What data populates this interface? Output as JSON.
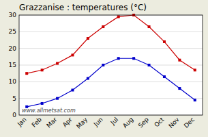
{
  "chart_data": {
    "type": "line",
    "title": "Grazzanise : temperatures (°C)",
    "categories": [
      "Jan",
      "Feb",
      "Mar",
      "Apr",
      "May",
      "Jun",
      "Jul",
      "Aug",
      "Sep",
      "Oct",
      "Nov",
      "Dec"
    ],
    "series": [
      {
        "color": "#cc0000",
        "values": [
          12.5,
          13.5,
          15.5,
          18.0,
          23.0,
          26.5,
          29.5,
          30.0,
          26.5,
          22.0,
          16.5,
          13.5
        ]
      },
      {
        "color": "#0000cc",
        "values": [
          2.5,
          3.5,
          5.0,
          7.5,
          11.0,
          15.0,
          17.0,
          17.0,
          15.0,
          11.5,
          8.0,
          4.5
        ]
      }
    ],
    "marker": "square",
    "ylim": [
      0,
      30
    ],
    "yticks": [
      0,
      5,
      10,
      15,
      20,
      25,
      30
    ],
    "grid": true,
    "annotations": [
      "www.allmetsat.com"
    ]
  }
}
